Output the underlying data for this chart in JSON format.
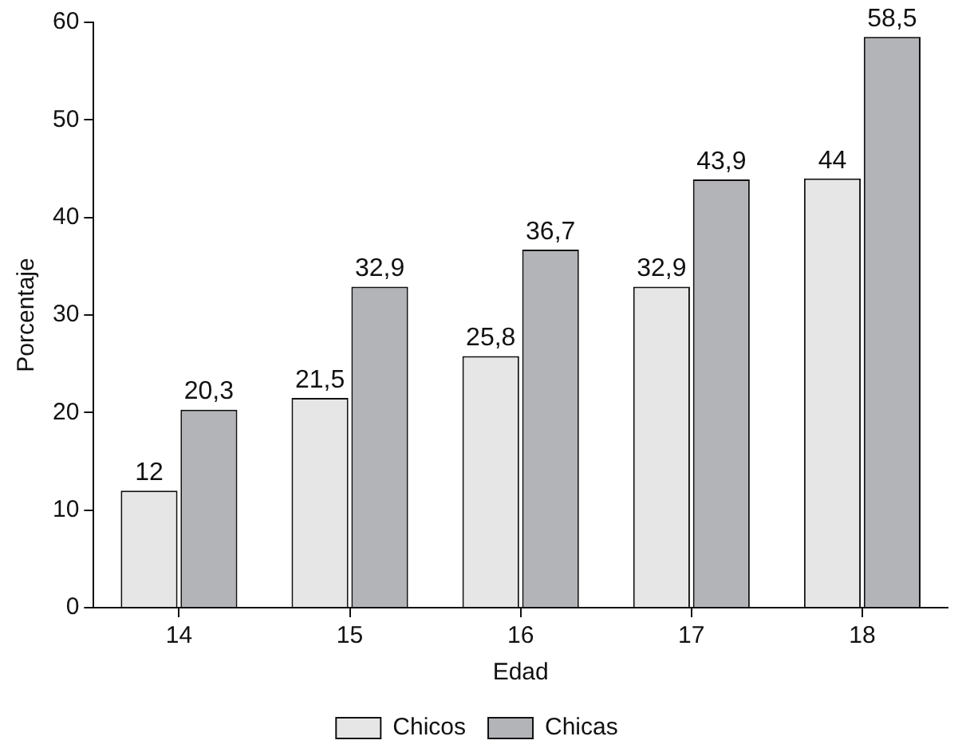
{
  "chart_data": {
    "type": "bar",
    "xlabel": "Edad",
    "ylabel": "Porcentaje",
    "categories": [
      "14",
      "15",
      "16",
      "17",
      "18"
    ],
    "series": [
      {
        "name": "Chicos",
        "color": "#e6e6e6",
        "values": [
          12,
          21.5,
          25.8,
          32.9,
          44
        ],
        "value_labels": [
          "12",
          "21,5",
          "25,8",
          "32,9",
          "44"
        ]
      },
      {
        "name": "Chicas",
        "color": "#b3b4b8",
        "values": [
          20.3,
          32.9,
          36.7,
          43.9,
          58.5
        ],
        "value_labels": [
          "20,3",
          "32,9",
          "36,7",
          "43,9",
          "58,5"
        ]
      }
    ],
    "ylim": [
      0,
      60
    ],
    "yticks": [
      0,
      10,
      20,
      30,
      40,
      50,
      60
    ],
    "grid": false,
    "legend": "bottom"
  }
}
